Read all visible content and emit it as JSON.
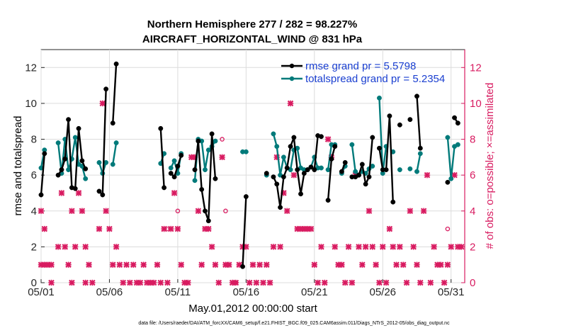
{
  "chart_data": {
    "type": "line",
    "title": "Northern Hemisphere 277 / 282 = 98.227%",
    "subtitle": "AIRCRAFT_HORIZONTAL_WIND @ 831 hPa",
    "xlabel": "May.01,2012 00:00:00 start",
    "ylabel_left": "rmse and totalspread",
    "ylabel_right": "# of obs: o=possible; ×=assimilated",
    "footnote": "data file: /Users/raeder/DAI/ATM_forcXX/CAM6_setup/f.e21.FHIST_BGC.f09_025.CAM6assim.011/Diags_NTrS_2012-05/obs_diag_output.nc",
    "xlim": [
      1,
      32
    ],
    "ylim_left": [
      0,
      13
    ],
    "ylim_right": [
      0,
      13
    ],
    "x_ticks": [
      1,
      6,
      11,
      16,
      21,
      26,
      31
    ],
    "x_tick_labels": [
      "05/01",
      "05/06",
      "05/11",
      "05/16",
      "05/21",
      "05/26",
      "05/31"
    ],
    "y_ticks_left": [
      "0",
      "2",
      "4",
      "6",
      "8",
      "10",
      "12"
    ],
    "y_ticks_right": [
      "0",
      "2",
      "4",
      "6",
      "8",
      "10",
      "12"
    ],
    "legend": {
      "position": "top-right",
      "entries": [
        "rmse grand pr = 5.5798",
        "totalspread grand pr = 5.2354"
      ]
    },
    "colors": {
      "rmse": "#000000",
      "totalspread": "#007a7a",
      "obs": "#d81b60",
      "right_axis": "#d81b60",
      "legend_text": "#1a3fd0"
    },
    "series": [
      {
        "name": "rmse",
        "points": [
          [
            1.0,
            4.9
          ],
          [
            1.25,
            7.2
          ],
          [
            2.25,
            6.0
          ],
          [
            2.5,
            6.3
          ],
          [
            2.75,
            6.9
          ],
          [
            3.0,
            9.1
          ],
          [
            3.25,
            5.3
          ],
          [
            3.5,
            5.25
          ],
          [
            3.75,
            8.6
          ],
          [
            4.0,
            6.8
          ],
          [
            4.25,
            6.35
          ],
          [
            5.25,
            5.1
          ],
          [
            5.5,
            4.9
          ],
          [
            5.75,
            10.8
          ],
          [
            6.25,
            8.9
          ],
          [
            6.5,
            12.2
          ],
          [
            9.75,
            8.6
          ],
          [
            10.0,
            5.3
          ],
          [
            10.5,
            6.1
          ],
          [
            10.75,
            5.9
          ],
          [
            11.0,
            6.5
          ],
          [
            11.25,
            7.1
          ],
          [
            12.25,
            6.3
          ],
          [
            12.5,
            7.9
          ],
          [
            12.75,
            5.2
          ],
          [
            13.0,
            4.0
          ],
          [
            13.25,
            3.45
          ],
          [
            13.5,
            8.3
          ],
          [
            13.75,
            5.8
          ],
          [
            15.75,
            0.9
          ],
          [
            16.0,
            4.8
          ],
          [
            17.5,
            6.1
          ],
          [
            18.0,
            5.9
          ],
          [
            18.25,
            5.5
          ],
          [
            18.5,
            4.2
          ],
          [
            18.75,
            5.9
          ],
          [
            19.0,
            6.4
          ],
          [
            19.25,
            7.6
          ],
          [
            19.5,
            8.1
          ],
          [
            19.75,
            6.3
          ],
          [
            20.0,
            4.95
          ],
          [
            20.25,
            6.1
          ],
          [
            20.5,
            6.3
          ],
          [
            20.75,
            6.45
          ],
          [
            21.0,
            6.3
          ],
          [
            21.25,
            8.2
          ],
          [
            21.5,
            8.15
          ],
          [
            22.0,
            4.6
          ],
          [
            22.25,
            6.9
          ],
          [
            22.5,
            7.6
          ],
          [
            23.0,
            6.2
          ],
          [
            23.25,
            6.7
          ],
          [
            23.75,
            5.9
          ],
          [
            24.0,
            5.9
          ],
          [
            24.25,
            6.0
          ],
          [
            24.5,
            6.6
          ],
          [
            24.75,
            5.5
          ],
          [
            25.0,
            5.9
          ],
          [
            25.25,
            8.1
          ],
          [
            25.75,
            7.5
          ],
          [
            26.0,
            6.3
          ],
          [
            26.25,
            6.3
          ],
          [
            26.5,
            9.3
          ],
          [
            26.75,
            4.5
          ],
          [
            27.25,
            8.8
          ],
          [
            28.0,
            9.1
          ],
          [
            28.5,
            10.4
          ],
          [
            28.75,
            7.5
          ],
          [
            30.75,
            5.6
          ],
          [
            31.25,
            9.2
          ],
          [
            31.5,
            8.9
          ]
        ]
      },
      {
        "name": "totalspread",
        "points": [
          [
            1.0,
            6.4
          ],
          [
            1.25,
            7.4
          ],
          [
            2.25,
            7.8
          ],
          [
            2.5,
            6.1
          ],
          [
            2.75,
            8.0
          ],
          [
            3.0,
            6.3
          ],
          [
            3.25,
            6.9
          ],
          [
            3.5,
            8.1
          ],
          [
            3.75,
            6.6
          ],
          [
            4.0,
            6.5
          ],
          [
            4.25,
            5.8
          ],
          [
            5.25,
            6.7
          ],
          [
            5.5,
            6.1
          ],
          [
            5.75,
            6.7
          ],
          [
            6.25,
            6.6
          ],
          [
            6.5,
            7.8
          ],
          [
            9.75,
            6.65
          ],
          [
            10.0,
            7.2
          ],
          [
            10.5,
            6.4
          ],
          [
            10.75,
            6.8
          ],
          [
            11.0,
            6.1
          ],
          [
            11.25,
            7.2
          ],
          [
            12.25,
            5.7
          ],
          [
            12.5,
            8.0
          ],
          [
            12.75,
            7.9
          ],
          [
            13.0,
            6.3
          ],
          [
            13.25,
            7.4
          ],
          [
            13.5,
            7.6
          ],
          [
            13.75,
            7.9
          ],
          [
            15.75,
            7.3
          ],
          [
            16.0,
            7.3
          ],
          [
            17.5,
            6.0
          ],
          [
            18.0,
            8.3
          ],
          [
            18.25,
            7.6
          ],
          [
            18.5,
            6.0
          ],
          [
            18.75,
            7.0
          ],
          [
            19.0,
            6.4
          ],
          [
            19.25,
            6.3
          ],
          [
            19.5,
            7.4
          ],
          [
            19.75,
            7.5
          ],
          [
            20.0,
            6.4
          ],
          [
            20.25,
            6.3
          ],
          [
            20.5,
            6.3
          ],
          [
            20.75,
            6.45
          ],
          [
            21.0,
            7.0
          ],
          [
            21.25,
            6.4
          ],
          [
            21.5,
            6.4
          ],
          [
            22.0,
            6.3
          ],
          [
            22.25,
            7.7
          ],
          [
            22.5,
            7.7
          ],
          [
            23.0,
            6.1
          ],
          [
            23.25,
            6.5
          ],
          [
            23.75,
            7.7
          ],
          [
            24.0,
            6.2
          ],
          [
            24.25,
            6.0
          ],
          [
            24.5,
            6.2
          ],
          [
            24.75,
            6.1
          ],
          [
            25.0,
            6.35
          ],
          [
            25.25,
            6.5
          ],
          [
            25.75,
            10.3
          ],
          [
            26.0,
            6.1
          ],
          [
            26.25,
            7.6
          ],
          [
            26.75,
            7.3
          ],
          [
            27.25,
            6.3
          ],
          [
            28.0,
            6.35
          ],
          [
            28.5,
            6.2
          ],
          [
            28.75,
            7.2
          ],
          [
            30.75,
            8.1
          ],
          [
            31.0,
            5.8
          ],
          [
            31.25,
            7.6
          ],
          [
            31.5,
            7.7
          ]
        ]
      }
    ],
    "obs_assimilated": [
      [
        1.0,
        4
      ],
      [
        1.25,
        3
      ],
      [
        1.0,
        1
      ],
      [
        1.25,
        1
      ],
      [
        1.5,
        1
      ],
      [
        1.75,
        1
      ],
      [
        1.75,
        0
      ],
      [
        2.25,
        2
      ],
      [
        2.5,
        5
      ],
      [
        2.75,
        2
      ],
      [
        3.0,
        1
      ],
      [
        3.25,
        0
      ],
      [
        3.25,
        4
      ],
      [
        3.5,
        2
      ],
      [
        3.75,
        5
      ],
      [
        4.0,
        4
      ],
      [
        4.25,
        2
      ],
      [
        4.25,
        0
      ],
      [
        4.5,
        1
      ],
      [
        4.75,
        0
      ],
      [
        5.25,
        3
      ],
      [
        5.5,
        10
      ],
      [
        5.75,
        4
      ],
      [
        6.0,
        3
      ],
      [
        6.25,
        1
      ],
      [
        6.5,
        2
      ],
      [
        6.75,
        1
      ],
      [
        7.0,
        0
      ],
      [
        7.25,
        1
      ],
      [
        7.5,
        0
      ],
      [
        7.75,
        1
      ],
      [
        8.0,
        0
      ],
      [
        8.25,
        0
      ],
      [
        8.5,
        1
      ],
      [
        8.75,
        0
      ],
      [
        9.0,
        0
      ],
      [
        9.25,
        0
      ],
      [
        9.5,
        1
      ],
      [
        9.75,
        0
      ],
      [
        10.0,
        3
      ],
      [
        10.25,
        0
      ],
      [
        10.5,
        3
      ],
      [
        10.75,
        5
      ],
      [
        11.0,
        3
      ],
      [
        11.25,
        1
      ],
      [
        11.5,
        0
      ],
      [
        11.75,
        0
      ],
      [
        12.0,
        7
      ],
      [
        12.25,
        7
      ],
      [
        12.5,
        4
      ],
      [
        12.75,
        1
      ],
      [
        13.0,
        3
      ],
      [
        13.25,
        3
      ],
      [
        13.5,
        2
      ],
      [
        13.75,
        1
      ],
      [
        14.0,
        0
      ],
      [
        14.25,
        7
      ],
      [
        14.5,
        1
      ],
      [
        14.75,
        1
      ],
      [
        15.0,
        0
      ],
      [
        15.25,
        0
      ],
      [
        15.5,
        1
      ],
      [
        15.75,
        2
      ],
      [
        16.0,
        2
      ],
      [
        16.25,
        0
      ],
      [
        16.5,
        1
      ],
      [
        16.75,
        0
      ],
      [
        17.0,
        1
      ],
      [
        17.25,
        0
      ],
      [
        17.5,
        1
      ],
      [
        17.75,
        0
      ],
      [
        18.0,
        2
      ],
      [
        18.25,
        7
      ],
      [
        18.5,
        2
      ],
      [
        18.75,
        5
      ],
      [
        19.0,
        4
      ],
      [
        19.25,
        10
      ],
      [
        19.5,
        6
      ],
      [
        19.75,
        3
      ],
      [
        20.0,
        3
      ],
      [
        20.25,
        3
      ],
      [
        20.5,
        3
      ],
      [
        20.75,
        3
      ],
      [
        21.0,
        1
      ],
      [
        21.25,
        0
      ],
      [
        21.5,
        2
      ],
      [
        21.75,
        0
      ],
      [
        22.0,
        8
      ],
      [
        22.25,
        7
      ],
      [
        22.5,
        2
      ],
      [
        22.75,
        1
      ],
      [
        23.0,
        1
      ],
      [
        23.25,
        0
      ],
      [
        23.5,
        2
      ],
      [
        23.75,
        0
      ],
      [
        24.0,
        6
      ],
      [
        24.25,
        2
      ],
      [
        24.5,
        1
      ],
      [
        24.75,
        2
      ],
      [
        25.0,
        4
      ],
      [
        25.25,
        2
      ],
      [
        25.5,
        1
      ],
      [
        25.75,
        0
      ],
      [
        26.0,
        2
      ],
      [
        26.25,
        0
      ],
      [
        26.5,
        3
      ],
      [
        26.75,
        2
      ],
      [
        27.0,
        1
      ],
      [
        27.25,
        2
      ],
      [
        27.5,
        1
      ],
      [
        27.75,
        0
      ],
      [
        28.0,
        4
      ],
      [
        28.25,
        2
      ],
      [
        28.5,
        1
      ],
      [
        28.75,
        0
      ],
      [
        29.0,
        4
      ],
      [
        29.25,
        6
      ],
      [
        29.5,
        0
      ],
      [
        29.75,
        2
      ],
      [
        30.0,
        1
      ],
      [
        30.25,
        1
      ],
      [
        30.5,
        0
      ],
      [
        30.75,
        1
      ],
      [
        31.0,
        2
      ],
      [
        31.25,
        6
      ],
      [
        31.5,
        2
      ],
      [
        31.75,
        2
      ]
    ],
    "obs_possible": [
      [
        10.25,
        3
      ],
      [
        11.0,
        4
      ],
      [
        14.25,
        8
      ],
      [
        14.5,
        4
      ],
      [
        15.25,
        0
      ],
      [
        30.75,
        3
      ]
    ]
  }
}
